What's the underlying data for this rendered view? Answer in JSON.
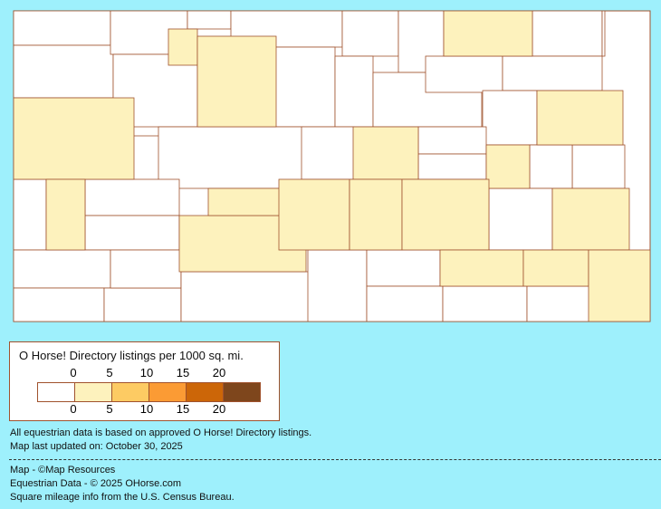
{
  "legend": {
    "title": "O Horse! Directory listings per 1000 sq. mi.",
    "top_ticks": [
      "0",
      "5",
      "10",
      "15",
      "20"
    ],
    "bottom_ticks": [
      "0",
      "5",
      "10",
      "15",
      "20"
    ],
    "bins": [
      {
        "range": "0",
        "color": "#ffffff"
      },
      {
        "range": "0-5",
        "color": "#fdf2bd"
      },
      {
        "range": "5-10",
        "color": "#fdcb63"
      },
      {
        "range": "10-15",
        "color": "#fb9b34"
      },
      {
        "range": "15-20",
        "color": "#cc6608"
      },
      {
        "range": "20+",
        "color": "#7e461c"
      }
    ]
  },
  "map": {
    "border_color": "#a0522d",
    "county_bins": [
      0,
      0,
      0,
      0,
      0,
      0,
      0,
      0,
      0,
      0,
      0,
      0,
      0,
      0,
      0,
      0,
      0,
      0,
      0,
      0,
      0,
      0,
      0,
      0,
      0,
      0,
      0,
      0,
      0,
      0,
      0,
      0,
      0,
      0,
      0,
      0,
      0,
      0,
      1,
      1,
      1,
      1,
      1,
      1,
      1,
      1,
      1,
      1,
      1,
      1,
      1,
      1,
      1,
      1,
      1
    ]
  },
  "notes": {
    "line1": "All equestrian data is based on approved O Horse! Directory listings.",
    "line2": "Map last updated on: October 30, 2025",
    "credit1": "Map - ©Map Resources",
    "credit2": "Equestrian Data - © 2025 OHorse.com",
    "credit3": "Square mileage info from the U.S. Census Bureau."
  }
}
